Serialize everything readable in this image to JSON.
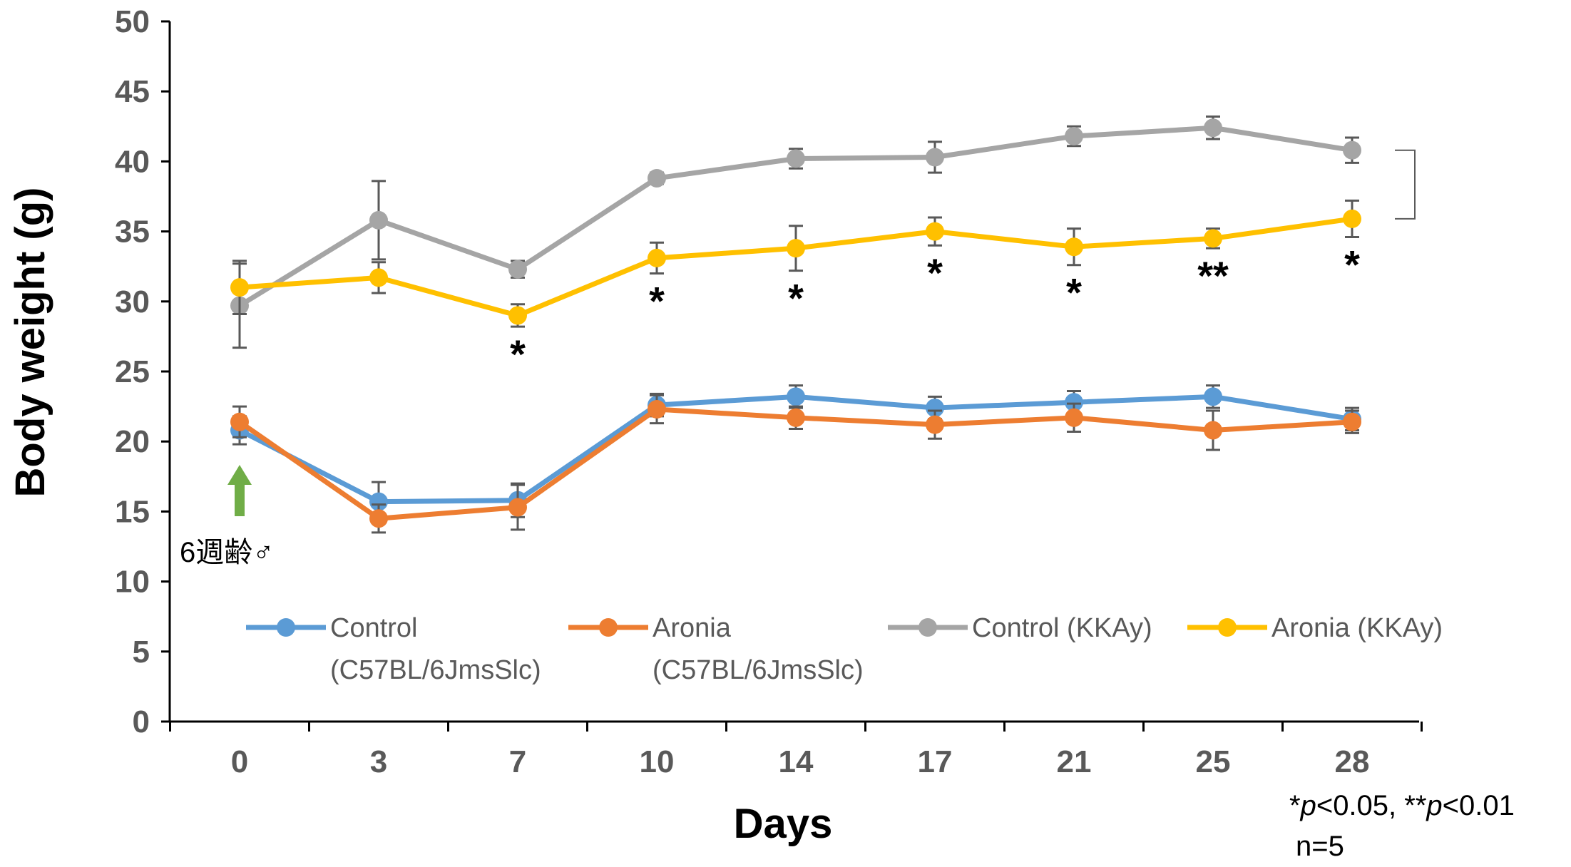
{
  "chart_data": {
    "type": "line",
    "title": "",
    "xlabel": "Days",
    "ylabel": "Body weight (g)",
    "x": [
      0,
      3,
      7,
      10,
      14,
      17,
      21,
      25,
      28
    ],
    "x_tick_labels": [
      "0",
      "3",
      "7",
      "10",
      "14",
      "17",
      "21",
      "25",
      "28"
    ],
    "ylim": [
      0,
      50
    ],
    "y_ticks": [
      0,
      5,
      10,
      15,
      20,
      25,
      30,
      35,
      40,
      45,
      50
    ],
    "y_tick_labels": [
      "0",
      "5",
      "10",
      "15",
      "20",
      "25",
      "30",
      "35",
      "40",
      "45",
      "50"
    ],
    "grid": false,
    "legend_position": "bottom",
    "series": [
      {
        "name_line1": "Control",
        "name_line2": "(C57BL/6JmsSlc)",
        "color": "#5B9BD5",
        "values": [
          20.8,
          15.7,
          15.8,
          22.6,
          23.2,
          22.4,
          22.8,
          23.2,
          21.6
        ],
        "errors": [
          1.0,
          1.4,
          1.2,
          0.8,
          0.8,
          0.8,
          0.8,
          0.8,
          0.8
        ]
      },
      {
        "name_line1": "Aronia",
        "name_line2": "(C57BL/6JmsSlc)",
        "color": "#ED7D31",
        "values": [
          21.4,
          14.5,
          15.3,
          22.3,
          21.7,
          21.2,
          21.7,
          20.8,
          21.4
        ],
        "errors": [
          1.1,
          1.0,
          1.6,
          1.0,
          0.8,
          1.0,
          1.0,
          1.4,
          0.8
        ]
      },
      {
        "name_line1": "Control (KKAy)",
        "name_line2": "",
        "color": "#A5A5A5",
        "values": [
          29.7,
          35.8,
          32.3,
          38.8,
          40.2,
          40.3,
          41.8,
          42.4,
          40.8
        ],
        "errors": [
          3.0,
          2.8,
          0.6,
          0.4,
          0.7,
          1.1,
          0.7,
          0.8,
          0.9
        ]
      },
      {
        "name_line1": "Aronia (KKAy)",
        "name_line2": "",
        "color": "#FFC000",
        "values": [
          31.0,
          31.7,
          29.0,
          33.1,
          33.8,
          35.0,
          33.9,
          34.5,
          35.9
        ],
        "errors": [
          1.9,
          1.1,
          0.8,
          1.1,
          1.6,
          1.0,
          1.3,
          0.7,
          1.3
        ]
      }
    ],
    "significance": [
      {
        "day": 7,
        "label": "*"
      },
      {
        "day": 10,
        "label": "*"
      },
      {
        "day": 14,
        "label": "*"
      },
      {
        "day": 17,
        "label": "*"
      },
      {
        "day": 21,
        "label": "*"
      },
      {
        "day": 25,
        "label": "**"
      },
      {
        "day": 28,
        "label": "*"
      }
    ],
    "annotations": {
      "age_marker": "6週齢♂",
      "arrow_color": "#70AD47",
      "bracket_color": "#595959",
      "footnote_parts": [
        "*",
        "p",
        "<0.05, **",
        "p",
        "<0.01"
      ],
      "n_label": "n=5"
    }
  }
}
